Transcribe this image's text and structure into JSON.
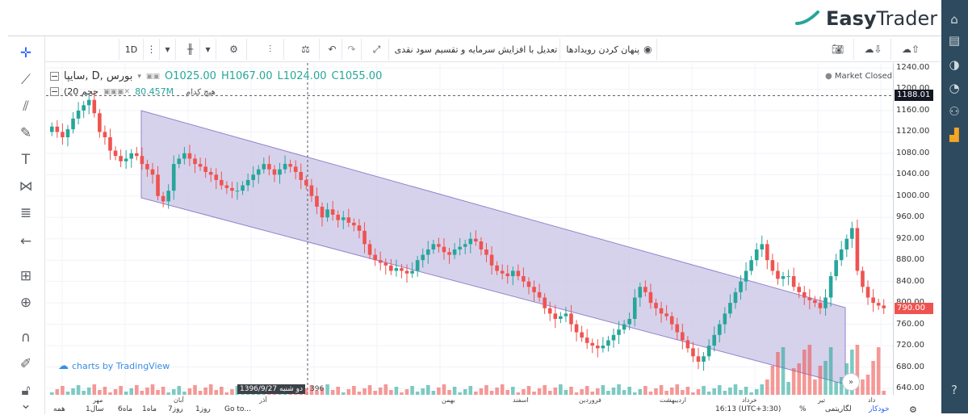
{
  "brand": {
    "name_bold": "Easy",
    "name_light": "Trader"
  },
  "toolbar": {
    "interval": "1D",
    "adjust_label": "تعدیل با افزایش سرمایه و تقسیم سود نقدی",
    "hide_events_label": "پنهان کردن رویدادها"
  },
  "legend": {
    "symbol": "سایپا, D, بورس",
    "open": "O1025.00",
    "high": "H1067.00",
    "low": "L1024.00",
    "close": "C1055.00",
    "volume_label": "(حجم 20",
    "volume_value": "80.457M",
    "no_name": "هیچ کدام",
    "market_status": "Market Closed"
  },
  "credit": "charts by TradingView",
  "price_axis": {
    "ticks": [
      "1240.00",
      "1200.00",
      "1160.00",
      "1120.00",
      "1080.00",
      "1040.00",
      "1000.00",
      "960.00",
      "920.00",
      "880.00",
      "840.00",
      "800.00",
      "760.00",
      "720.00",
      "680.00",
      "640.00"
    ],
    "dashed_price": "1188.01",
    "last_price": "790.00"
  },
  "time_axis": {
    "labels": [
      "مهر",
      "آبان",
      "آذر",
      "بهمن",
      "اسفند",
      "فروردین",
      "اردیبهشت",
      "خرداد",
      "تیر",
      "داد"
    ],
    "crosshair_date": "1396/9/27 دو شنبه",
    "year_label": "396"
  },
  "bottom_bar": {
    "ranges": [
      "همه",
      "1سال",
      "6ماه",
      "1ماه",
      "7روز",
      "1روز",
      "Go to..."
    ],
    "clock": "16:13 (UTC+3:30)",
    "percent": "%",
    "log": "لگاریتمی",
    "auto": "خودکار"
  },
  "colors": {
    "up": "#26a69a",
    "down": "#ef5350",
    "channel_fill": "#c9c3e6",
    "channel_stroke": "#9283cc",
    "sidebar": "#2d4a5e",
    "accent_green": "#26a69a"
  },
  "chart_data": {
    "type": "candlestick",
    "ylim": [
      640,
      1240
    ],
    "closes": [
      1130,
      1120,
      1110,
      1125,
      1145,
      1160,
      1170,
      1180,
      1155,
      1120,
      1110,
      1085,
      1075,
      1065,
      1070,
      1080,
      1075,
      1060,
      1050,
      1040,
      1000,
      990,
      1010,
      1060,
      1070,
      1080,
      1070,
      1060,
      1055,
      1045,
      1040,
      1030,
      1020,
      1015,
      1010,
      1010,
      1020,
      1030,
      1040,
      1050,
      1060,
      1050,
      1040,
      1050,
      1060,
      1055,
      1045,
      1030,
      1020,
      1000,
      980,
      960,
      975,
      965,
      955,
      960,
      950,
      945,
      935,
      910,
      890,
      880,
      875,
      870,
      860,
      865,
      860,
      855,
      860,
      880,
      890,
      900,
      910,
      905,
      895,
      890,
      900,
      905,
      910,
      920,
      915,
      900,
      890,
      870,
      860,
      855,
      850,
      860,
      850,
      840,
      830,
      820,
      810,
      790,
      780,
      770,
      775,
      780,
      760,
      745,
      735,
      725,
      720,
      715,
      720,
      730,
      740,
      750,
      760,
      770,
      810,
      830,
      820,
      800,
      790,
      780,
      775,
      760,
      745,
      730,
      715,
      700,
      690,
      700,
      720,
      740,
      760,
      780,
      800,
      820,
      840,
      860,
      880,
      900,
      910,
      880,
      860,
      845,
      850,
      850,
      830,
      820,
      810,
      805,
      800,
      790,
      810,
      850,
      880,
      900,
      920,
      940,
      860,
      830,
      810,
      800,
      795,
      790
    ]
  }
}
